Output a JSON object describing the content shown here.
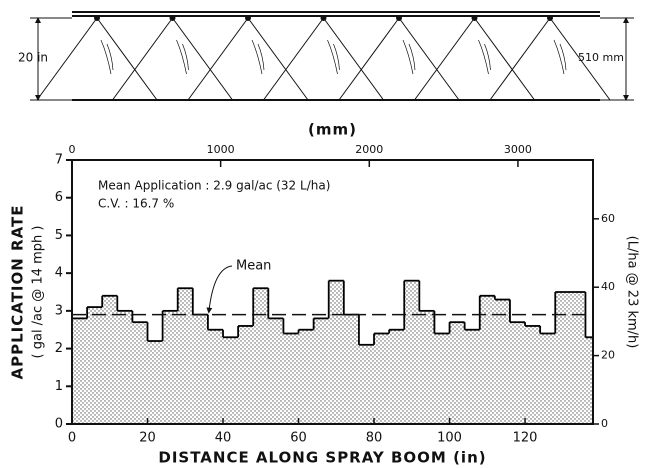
{
  "diagram": {
    "height_label": "20 in",
    "height_label_metric": "510 mm"
  },
  "chart_data": {
    "type": "histogram",
    "x2_label": "(mm)",
    "x_label": "DISTANCE ALONG SPRAY BOOM (in)",
    "y_label": "APPLICATION RATE",
    "y_sublabel": "( gal /ac @ 14 mph )",
    "y2_label": "(L/ha @ 23 km/h)",
    "annotations": [
      "Mean Application : 2.9 gal/ac (32 L/ha)",
      "C.V. : 16.7 %"
    ],
    "mean_label": "Mean",
    "mean": 2.9,
    "bins": [
      0,
      4,
      8,
      12,
      16,
      20,
      24,
      28,
      32,
      36,
      40,
      44,
      48,
      52,
      56,
      60,
      64,
      68,
      72,
      76,
      80,
      84,
      88,
      92,
      96,
      100,
      104,
      108,
      112,
      116,
      120,
      124,
      128,
      136,
      138
    ],
    "values": [
      2.8,
      3.1,
      3.4,
      3.0,
      2.7,
      2.2,
      3.0,
      3.6,
      2.9,
      2.5,
      2.3,
      2.6,
      3.6,
      2.8,
      2.4,
      2.5,
      2.8,
      3.8,
      2.9,
      2.1,
      2.4,
      2.5,
      3.8,
      3.0,
      2.4,
      2.7,
      2.5,
      3.4,
      3.3,
      2.7,
      2.6,
      2.4,
      3.5,
      2.3
    ],
    "xlim": [
      0,
      138
    ],
    "xticks": [
      0,
      20,
      40,
      60,
      80,
      100,
      120
    ],
    "x2lim": [
      0,
      3505
    ],
    "x2ticks": [
      0,
      1000,
      2000,
      3000
    ],
    "ylim": [
      0,
      7
    ],
    "yticks": [
      0,
      1,
      2,
      3,
      4,
      5,
      6,
      7
    ],
    "y2lim": [
      0,
      77.2
    ],
    "y2ticks": [
      0,
      20,
      40,
      60
    ],
    "color": "#000000"
  }
}
